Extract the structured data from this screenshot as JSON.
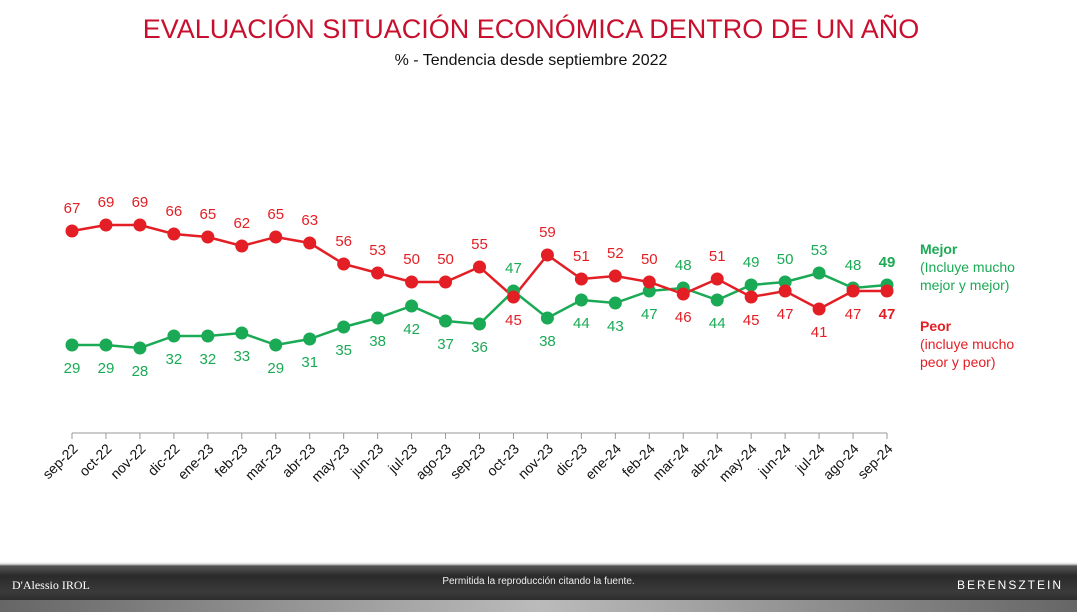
{
  "chart_data": {
    "type": "line",
    "title": "EVALUACIÓN SITUACIÓN ECONÓMICA DENTRO DE UN AÑO",
    "subtitle": "% - Tendencia desde septiembre 2022",
    "categories": [
      "sep-22",
      "oct-22",
      "nov-22",
      "dic-22",
      "ene-23",
      "feb-23",
      "mar-23",
      "abr-23",
      "may-23",
      "jun-23",
      "jul-23",
      "ago-23",
      "sep-23",
      "oct-23",
      "nov-23",
      "dic-23",
      "ene-24",
      "feb-24",
      "mar-24",
      "abr-24",
      "may-24",
      "jun-24",
      "jul-24",
      "ago-24",
      "sep-24"
    ],
    "series": [
      {
        "name": "Mejor",
        "description": "(Incluye mucho mejor y mejor)",
        "color": "#1aaa55",
        "values": [
          29,
          29,
          28,
          32,
          32,
          33,
          29,
          31,
          35,
          38,
          42,
          37,
          36,
          47,
          38,
          44,
          43,
          47,
          48,
          44,
          49,
          50,
          53,
          48,
          49
        ]
      },
      {
        "name": "Peor",
        "description": "(incluye mucho peor y peor)",
        "color": "#e31e24",
        "values": [
          67,
          69,
          69,
          66,
          65,
          62,
          65,
          63,
          56,
          53,
          50,
          50,
          55,
          45,
          59,
          51,
          52,
          50,
          46,
          51,
          45,
          47,
          41,
          47,
          47
        ]
      }
    ]
  },
  "footer": {
    "left": "D'Alessio IROL",
    "note": "Permitida la reproducción citando la fuente.",
    "right": "BERENSZTEIN"
  }
}
